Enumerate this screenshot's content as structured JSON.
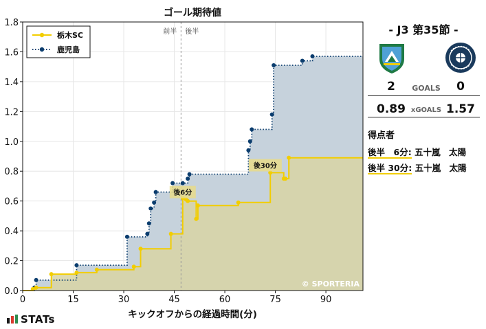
{
  "chart_data": {
    "type": "line",
    "title": "ゴール期待値",
    "xlabel": "キックオフからの経過時間(分)",
    "ylabel": "",
    "xlim": [
      0,
      101
    ],
    "ylim": [
      0,
      1.8
    ],
    "xticks": [
      0,
      15,
      30,
      45,
      60,
      75,
      90
    ],
    "yticks": [
      0.0,
      0.2,
      0.4,
      0.6,
      0.8,
      1.0,
      1.2,
      1.4,
      1.6,
      1.8
    ],
    "ytick_labels": [
      "0.0",
      "0.2",
      "0.4",
      "0.6",
      "0.8",
      "1.0",
      "1.2",
      "1.4",
      "1.6",
      "1.8"
    ],
    "grid": true,
    "legend_position": "top-left",
    "halftime_x": 47,
    "halftime_labels": [
      "前半",
      "後半"
    ],
    "watermark": "© SPORTERIA",
    "series": [
      {
        "name": "栃木SC",
        "color": "#f2cd00",
        "fill": "#d8d5a4",
        "line_style": "solid",
        "marker": "circle",
        "x": [
          0,
          3,
          4,
          8.5,
          16,
          22,
          33,
          35,
          44,
          47.5,
          48.5,
          49,
          51.5,
          52,
          64,
          73.5,
          77.5,
          78,
          79,
          101
        ],
        "y": [
          0,
          0.01,
          0.02,
          0.11,
          0.12,
          0.14,
          0.16,
          0.28,
          0.38,
          0.62,
          0.61,
          0.6,
          0.48,
          0.57,
          0.59,
          0.79,
          0.75,
          0.75,
          0.89,
          0.89
        ]
      },
      {
        "name": "鹿児島",
        "color": "#0b3d6e",
        "fill": "#c6d2dc",
        "line_style": "dotted",
        "marker": "circle",
        "x": [
          0,
          3.5,
          4,
          16,
          31,
          37,
          37.5,
          38,
          39,
          39.5,
          44.5,
          47.5,
          49,
          49.5,
          67,
          67.5,
          68,
          74,
          74.5,
          83,
          86,
          101
        ],
        "y": [
          0,
          0.02,
          0.07,
          0.17,
          0.36,
          0.38,
          0.45,
          0.55,
          0.59,
          0.66,
          0.72,
          0.72,
          0.75,
          0.78,
          0.94,
          1.0,
          1.08,
          1.18,
          1.51,
          1.54,
          1.57,
          1.57
        ]
      }
    ],
    "annotations": [
      {
        "label": "後6分",
        "x": 47.5,
        "y": 0.66
      },
      {
        "label": "後30分",
        "x": 72,
        "y": 0.84
      }
    ]
  },
  "match": {
    "title": "- J3 第35節 -",
    "home_score": "2",
    "away_score": "0",
    "goals_label": "GOALS",
    "home_xg": "0.89",
    "away_xg": "1.57",
    "xg_label": "xGOALS",
    "home_color": "#2e8b4e",
    "away_color": "#1a3a5c"
  },
  "scorers": {
    "title": "得点者",
    "items": [
      {
        "time": "後半　6分:",
        "name": "五十嵐　太陽"
      },
      {
        "time": "後半 30分:",
        "name": "五十嵐　太陽"
      }
    ]
  },
  "brand": {
    "logo_text": "STATs"
  }
}
